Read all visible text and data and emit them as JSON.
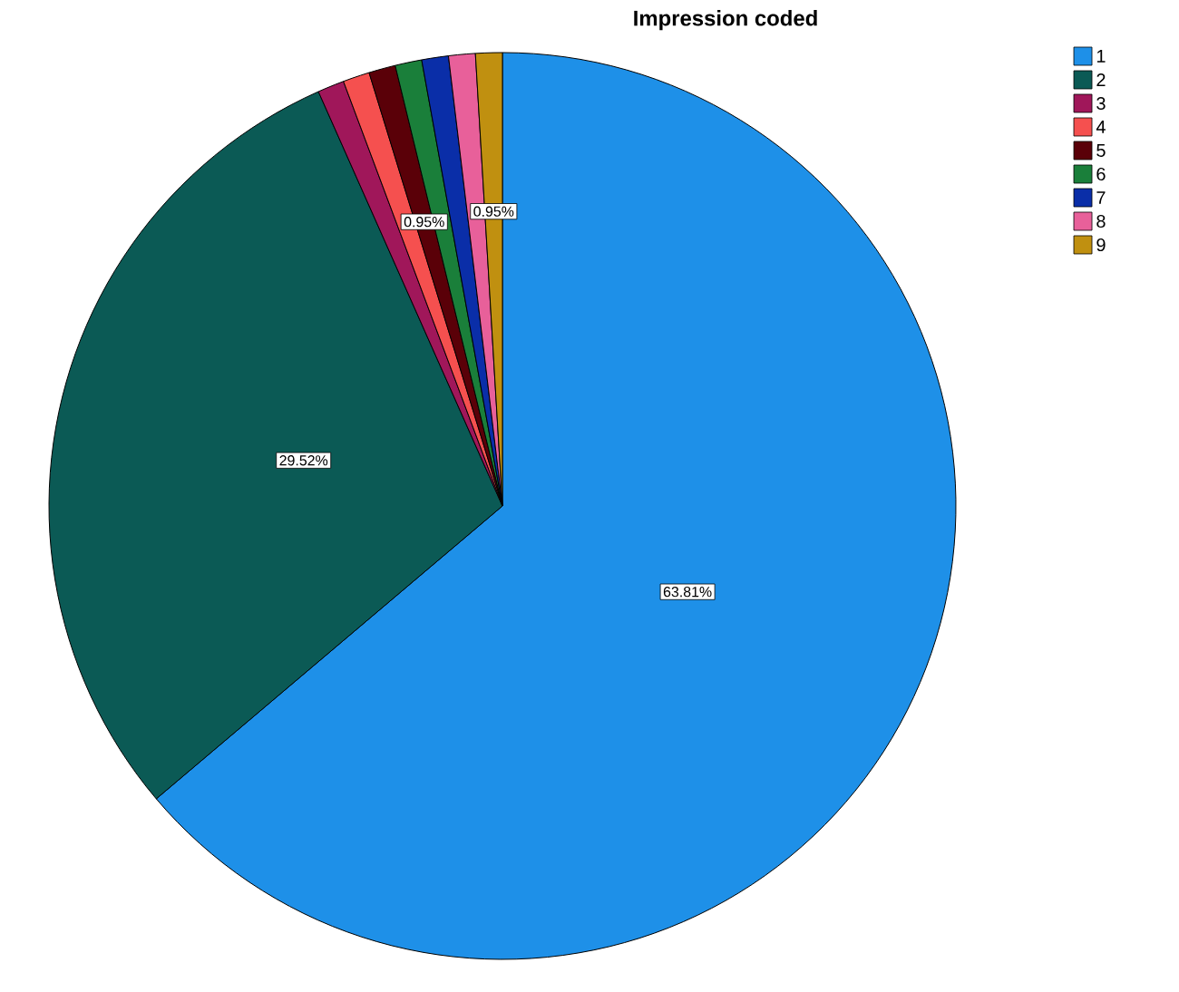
{
  "chart_data": {
    "type": "pie",
    "title": "Impression coded",
    "categories": [
      "1",
      "2",
      "3",
      "4",
      "5",
      "6",
      "7",
      "8",
      "9"
    ],
    "values": [
      63.81,
      29.52,
      0.95,
      0.95,
      0.95,
      0.95,
      0.95,
      0.95,
      0.95
    ],
    "value_labels": [
      "63.81%",
      "29.52%",
      null,
      null,
      "0.95%",
      null,
      null,
      null,
      "0.95%"
    ],
    "colors": [
      "#1e90e8",
      "#0b5a55",
      "#a0175a",
      "#f5504f",
      "#5a0008",
      "#1a7f3a",
      "#0a2ea8",
      "#e8609a",
      "#c09010"
    ],
    "legend": "top right"
  }
}
